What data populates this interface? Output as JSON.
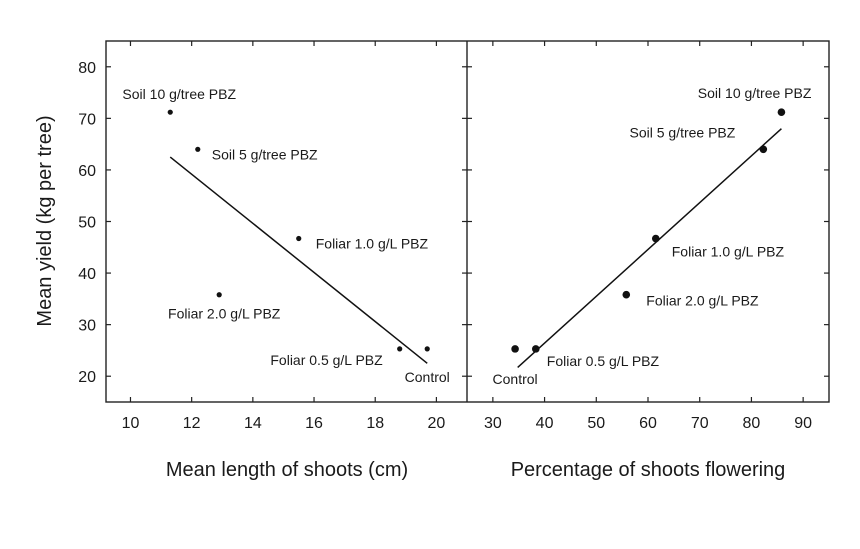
{
  "chart_data": {
    "ylabel": "Mean yield (kg per tree)",
    "ylim": [
      15,
      85
    ],
    "yticks": [
      20,
      30,
      40,
      50,
      60,
      70,
      80
    ],
    "panels": [
      {
        "type": "scatter",
        "xlabel": "Mean length of shoots (cm)",
        "xlim": [
          9.2,
          21
        ],
        "xticks": [
          10,
          12,
          14,
          16,
          18,
          20
        ],
        "points": [
          {
            "label": "Soil 10 g/tree PBZ",
            "x": 11.3,
            "y": 71.2
          },
          {
            "label": "Soil 5 g/tree PBZ",
            "x": 12.2,
            "y": 64.0
          },
          {
            "label": "Foliar 1.0 g/L PBZ",
            "x": 15.5,
            "y": 46.7
          },
          {
            "label": "Foliar 2.0 g/L PBZ",
            "x": 12.9,
            "y": 35.8
          },
          {
            "label": "Foliar 0.5 g/L PBZ",
            "x": 18.8,
            "y": 25.3
          },
          {
            "label": "Control",
            "x": 19.7,
            "y": 25.3
          }
        ],
        "fit_line": {
          "x": [
            11.3,
            19.7
          ],
          "y": [
            62.5,
            22.5
          ]
        }
      },
      {
        "type": "scatter",
        "xlabel": "Percentage of shoots flowering",
        "xlim": [
          25,
          95
        ],
        "xticks": [
          30,
          40,
          50,
          60,
          70,
          80,
          90
        ],
        "points": [
          {
            "label": "Soil 10 g/tree PBZ",
            "x": 85.8,
            "y": 71.2
          },
          {
            "label": "Soil 5 g/tree PBZ",
            "x": 82.3,
            "y": 64.0
          },
          {
            "label": "Foliar 1.0 g/L PBZ",
            "x": 61.5,
            "y": 46.7
          },
          {
            "label": "Foliar 2.0 g/L PBZ",
            "x": 55.8,
            "y": 35.8
          },
          {
            "label": "Foliar 0.5 g/L PBZ",
            "x": 38.3,
            "y": 25.3
          },
          {
            "label": "Control",
            "x": 34.3,
            "y": 25.3
          }
        ],
        "fit_line": {
          "x": [
            34.8,
            85.8
          ],
          "y": [
            21.7,
            68.0
          ]
        }
      }
    ]
  }
}
